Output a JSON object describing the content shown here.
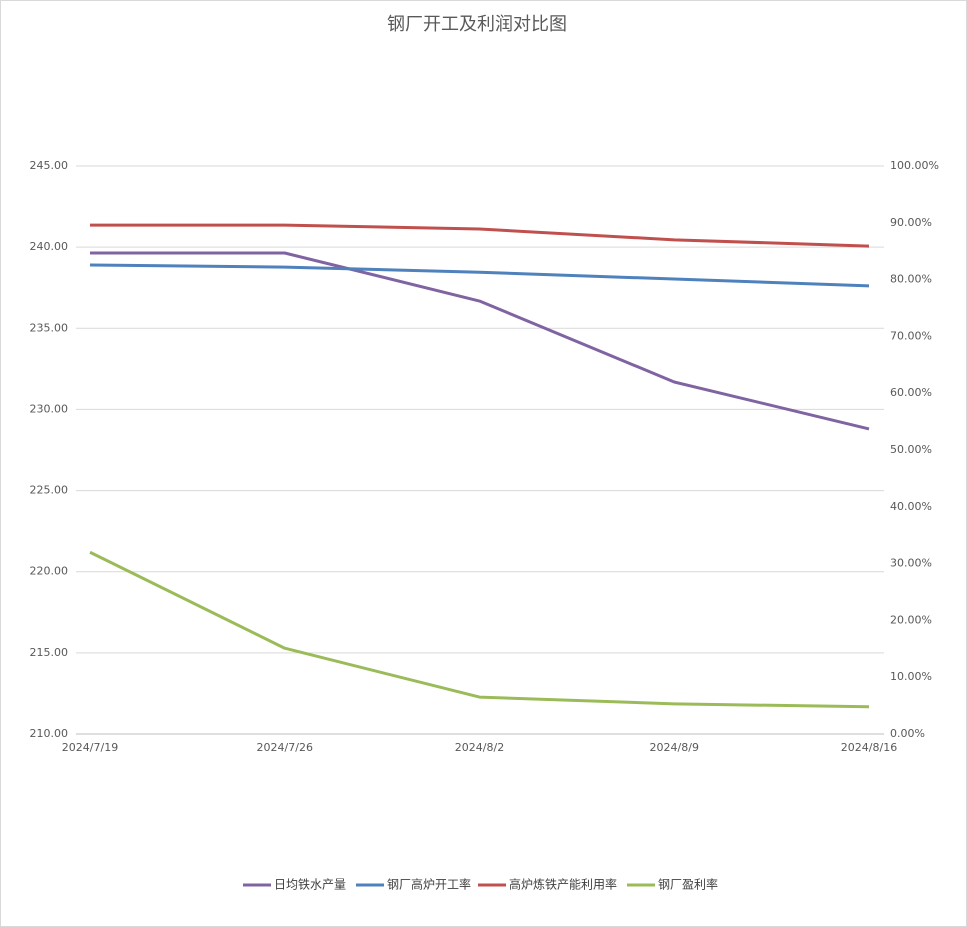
{
  "chart_data": {
    "type": "line",
    "title": "钢厂开工及利润对比图",
    "categories": [
      "2024/7/19",
      "2024/7/26",
      "2024/8/2",
      "2024/8/9",
      "2024/8/16"
    ],
    "series": [
      {
        "name": "日均铁水产量",
        "color": "#8064a2",
        "values": [
          239.64,
          239.64,
          236.68,
          231.69,
          228.8
        ]
      },
      {
        "name": "钢厂高炉开工率",
        "color": "#4f81bd",
        "axis": "y2",
        "values": [
          82.57,
          82.2,
          81.3,
          80.1,
          78.9
        ]
      },
      {
        "name": "高炉炼铁产能利用率",
        "color": "#c0504d",
        "axis": "y2",
        "values": [
          89.6,
          89.6,
          88.9,
          87.0,
          85.9
        ]
      },
      {
        "name": "钢厂盈利率",
        "color": "#9bbb59",
        "axis": "y2",
        "values": [
          32.0,
          15.1,
          6.5,
          5.3,
          4.8
        ]
      }
    ],
    "ylim": [
      210,
      245
    ],
    "yticks": [
      {
        "value": 210,
        "label": "210.00"
      },
      {
        "value": 215,
        "label": "215.00"
      },
      {
        "value": 220,
        "label": "220.00"
      },
      {
        "value": 225,
        "label": "225.00"
      },
      {
        "value": 230,
        "label": "230.00"
      },
      {
        "value": 235,
        "label": "235.00"
      },
      {
        "value": 240,
        "label": "240.00"
      },
      {
        "value": 245,
        "label": "245.00"
      }
    ],
    "y2lim": [
      0,
      100
    ],
    "y2ticks": [
      {
        "value": 0,
        "label": "0.00%"
      },
      {
        "value": 10,
        "label": "10.00%"
      },
      {
        "value": 20,
        "label": "20.00%"
      },
      {
        "value": 30,
        "label": "30.00%"
      },
      {
        "value": 40,
        "label": "40.00%"
      },
      {
        "value": 50,
        "label": "50.00%"
      },
      {
        "value": 60,
        "label": "60.00%"
      },
      {
        "value": 70,
        "label": "70.00%"
      },
      {
        "value": 80,
        "label": "80.00%"
      },
      {
        "value": 90,
        "label": "90.00%"
      },
      {
        "value": 100,
        "label": "100.00%"
      }
    ],
    "grid": true,
    "legend": "bottom"
  }
}
